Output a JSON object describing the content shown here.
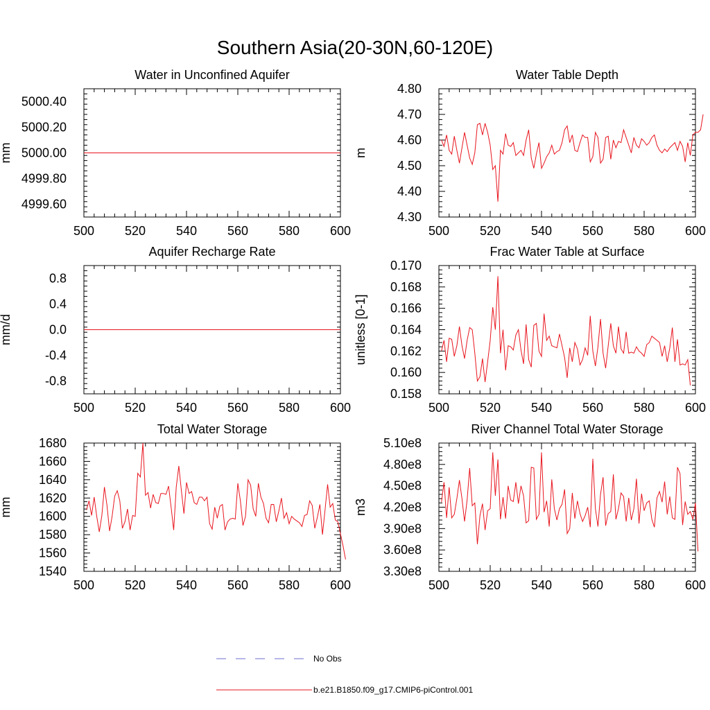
{
  "figure": {
    "title": "Southern Asia(20-30N,60-120E)",
    "legend": [
      {
        "label": "No Obs",
        "style": "dashed",
        "color": "#6d6dcf"
      },
      {
        "label": "b.e21.B1850.f09_g17.CMIP6-piControl.001",
        "style": "solid",
        "color": "#e8141d"
      }
    ],
    "line_color": "#e8141d"
  },
  "chart_data": [
    {
      "type": "line",
      "title": "Water in Unconfined Aquifer",
      "xlabel": "",
      "ylabel": "mm",
      "xlim": [
        500,
        600
      ],
      "ylim": [
        4999.5,
        5000.5
      ],
      "xticks": [
        500,
        520,
        540,
        560,
        580,
        600
      ],
      "yticks": [
        4999.6,
        4999.8,
        5000.0,
        5000.2,
        5000.4
      ],
      "ytick_labels": [
        "4999.60",
        "4999.80",
        "5000.00",
        "5000.20",
        "5000.40"
      ],
      "x_start": 500,
      "series": [
        {
          "values": [
            5000,
            5000
          ]
        }
      ],
      "x": [
        500,
        600
      ]
    },
    {
      "type": "line",
      "title": "Water Table Depth",
      "xlabel": "",
      "ylabel": "m",
      "xlim": [
        500,
        600
      ],
      "ylim": [
        4.3,
        4.8
      ],
      "xticks": [
        500,
        520,
        540,
        560,
        580,
        600
      ],
      "yticks": [
        4.3,
        4.4,
        4.5,
        4.6,
        4.7,
        4.8
      ],
      "ytick_labels": [
        "4.30",
        "4.40",
        "4.50",
        "4.60",
        "4.70",
        "4.80"
      ],
      "x_start": 501,
      "series": [
        {
          "values": [
            4.6,
            4.575,
            4.62,
            4.56,
            4.545,
            4.615,
            4.56,
            4.51,
            4.57,
            4.63,
            4.58,
            4.53,
            4.505,
            4.55,
            4.66,
            4.665,
            4.62,
            4.665,
            4.63,
            4.58,
            4.485,
            4.5,
            4.36,
            4.56,
            4.545,
            4.625,
            4.58,
            4.575,
            4.59,
            4.54,
            4.55,
            4.56,
            4.54,
            4.6,
            4.64,
            4.53,
            4.49,
            4.545,
            4.59,
            4.49,
            4.51,
            4.535,
            4.55,
            4.58,
            4.545,
            4.555,
            4.56,
            4.59,
            4.64,
            4.655,
            4.59,
            4.62,
            4.56,
            4.555,
            4.59,
            4.62,
            4.61,
            4.61,
            4.515,
            4.535,
            4.63,
            4.61,
            4.51,
            4.525,
            4.61,
            4.615,
            4.525,
            4.6,
            4.57,
            4.595,
            4.59,
            4.64,
            4.61,
            4.58,
            4.55,
            4.61,
            4.58,
            4.57,
            4.605,
            4.595,
            4.58,
            4.59,
            4.61,
            4.62,
            4.58,
            4.56,
            4.55,
            4.565,
            4.555,
            4.57,
            4.58,
            4.59,
            4.56,
            4.595,
            4.575,
            4.515,
            4.59,
            4.54,
            4.62,
            4.63,
            4.63,
            4.64,
            4.7
          ]
        }
      ],
      "x": null
    },
    {
      "type": "line",
      "title": "Aquifer Recharge Rate",
      "xlabel": "",
      "ylabel": "mm/d",
      "xlim": [
        500,
        600
      ],
      "ylim": [
        -1.0,
        1.0
      ],
      "xticks": [
        500,
        520,
        540,
        560,
        580,
        600
      ],
      "yticks": [
        -0.8,
        -0.4,
        0.0,
        0.4,
        0.8
      ],
      "ytick_labels": [
        "-0.8",
        "-0.4",
        "0.0",
        "0.4",
        "0.8"
      ],
      "x_start": 500,
      "series": [
        {
          "values": [
            0.0,
            0.0
          ]
        }
      ],
      "x": [
        500,
        600
      ]
    },
    {
      "type": "line",
      "title": "Frac Water Table at Surface",
      "xlabel": "",
      "ylabel": "unitless [0-1]",
      "xlim": [
        500,
        600
      ],
      "ylim": [
        0.158,
        0.17
      ],
      "xticks": [
        500,
        520,
        540,
        560,
        580,
        600
      ],
      "yticks": [
        0.158,
        0.16,
        0.162,
        0.164,
        0.166,
        0.168,
        0.17
      ],
      "ytick_labels": [
        "0.158",
        "0.160",
        "0.162",
        "0.164",
        "0.166",
        "0.168",
        "0.170"
      ],
      "x_start": 501,
      "series": [
        {
          "values": [
            0.162,
            0.163,
            0.161,
            0.1632,
            0.1631,
            0.1615,
            0.1625,
            0.1643,
            0.1625,
            0.1613,
            0.163,
            0.1642,
            0.164,
            0.1618,
            0.1592,
            0.1596,
            0.1613,
            0.1591,
            0.161,
            0.163,
            0.1661,
            0.164,
            0.169,
            0.1618,
            0.164,
            0.1602,
            0.1625,
            0.1624,
            0.1621,
            0.1635,
            0.164,
            0.1621,
            0.1608,
            0.1645,
            0.1612,
            0.1605,
            0.1644,
            0.1646,
            0.162,
            0.1615,
            0.1655,
            0.163,
            0.1634,
            0.1625,
            0.1624,
            0.1623,
            0.1636,
            0.1625,
            0.1614,
            0.1595,
            0.1623,
            0.161,
            0.1628,
            0.1622,
            0.1607,
            0.1612,
            0.1623,
            0.1616,
            0.1653,
            0.162,
            0.1606,
            0.1624,
            0.165,
            0.1618,
            0.1604,
            0.1625,
            0.1646,
            0.1625,
            0.1618,
            0.1643,
            0.1622,
            0.1618,
            0.1638,
            0.1618,
            0.1619,
            0.1618,
            0.1624,
            0.162,
            0.1618,
            0.1615,
            0.1626,
            0.1628,
            0.1634,
            0.1632,
            0.163,
            0.1628,
            0.1615,
            0.1625,
            0.161,
            0.1623,
            0.1642,
            0.161,
            0.1631,
            0.1607,
            0.1608,
            0.1607,
            0.1612,
            0.1588
          ]
        }
      ],
      "x": null
    },
    {
      "type": "line",
      "title": "Total Water Storage",
      "xlabel": "",
      "ylabel": "mm",
      "xlim": [
        500,
        600
      ],
      "ylim": [
        1540,
        1680
      ],
      "xticks": [
        500,
        520,
        540,
        560,
        580,
        600
      ],
      "yticks": [
        1540,
        1560,
        1580,
        1600,
        1620,
        1640,
        1660,
        1680
      ],
      "ytick_labels": [
        "1540",
        "1560",
        "1580",
        "1600",
        "1620",
        "1640",
        "1660",
        "1680"
      ],
      "x_start": 501,
      "series": [
        {
          "values": [
            1607,
            1617,
            1601,
            1621,
            1600,
            1583,
            1601,
            1632,
            1612,
            1584,
            1600,
            1622,
            1628,
            1617,
            1587,
            1594,
            1608,
            1585,
            1601,
            1600,
            1647,
            1643,
            1680,
            1623,
            1626,
            1609,
            1624,
            1615,
            1614,
            1625,
            1625,
            1624,
            1633,
            1610,
            1585,
            1632,
            1655,
            1628,
            1603,
            1637,
            1625,
            1627,
            1615,
            1613,
            1621,
            1621,
            1617,
            1621,
            1592,
            1586,
            1610,
            1598,
            1611,
            1613,
            1585,
            1594,
            1597,
            1598,
            1597,
            1636,
            1617,
            1590,
            1600,
            1640,
            1634,
            1608,
            1600,
            1636,
            1621,
            1614,
            1598,
            1593,
            1613,
            1613,
            1594,
            1606,
            1620,
            1598,
            1604,
            1592,
            1600,
            1597,
            1595,
            1593,
            1589,
            1601,
            1602,
            1617,
            1612,
            1587,
            1599,
            1613,
            1580,
            1607,
            1635,
            1610,
            1614,
            1596,
            1594,
            1581,
            1568,
            1553
          ]
        }
      ],
      "x": null
    },
    {
      "type": "line",
      "title": "River Channel Total Water Storage",
      "xlabel": "",
      "ylabel": "m3",
      "xlim": [
        500,
        600
      ],
      "ylim": [
        330000000,
        510000000
      ],
      "xticks": [
        500,
        520,
        540,
        560,
        580,
        600
      ],
      "yticks": [
        330000000,
        360000000,
        390000000,
        420000000,
        450000000,
        480000000,
        510000000
      ],
      "ytick_labels": [
        "3.30e8",
        "3.60e8",
        "3.90e8",
        "4.20e8",
        "4.50e8",
        "4.80e8",
        "5.10e8"
      ],
      "x_start": 501,
      "series": [
        {
          "values": [
            427000000,
            455000000,
            405000000,
            448000000,
            405000000,
            410000000,
            432000000,
            458000000,
            432000000,
            400000000,
            430000000,
            475000000,
            422000000,
            426000000,
            368000000,
            408000000,
            425000000,
            388000000,
            415000000,
            418000000,
            497000000,
            436000000,
            487000000,
            403000000,
            434000000,
            404000000,
            450000000,
            430000000,
            428000000,
            455000000,
            425000000,
            450000000,
            436000000,
            398000000,
            401000000,
            476000000,
            475000000,
            403000000,
            410000000,
            497000000,
            413000000,
            429000000,
            393000000,
            459000000,
            418000000,
            402000000,
            418000000,
            424000000,
            445000000,
            383000000,
            390000000,
            440000000,
            404000000,
            429000000,
            411000000,
            400000000,
            408000000,
            420000000,
            392000000,
            488000000,
            418000000,
            393000000,
            438000000,
            462000000,
            394000000,
            411000000,
            414000000,
            466000000,
            403000000,
            418000000,
            440000000,
            435000000,
            400000000,
            433000000,
            402000000,
            418000000,
            460000000,
            397000000,
            439000000,
            415000000,
            426000000,
            429000000,
            403000000,
            392000000,
            433000000,
            442000000,
            427000000,
            456000000,
            410000000,
            435000000,
            405000000,
            403000000,
            476000000,
            467000000,
            395000000,
            428000000,
            410000000,
            414000000,
            403000000,
            426000000,
            358000000
          ]
        }
      ],
      "x": null
    }
  ]
}
